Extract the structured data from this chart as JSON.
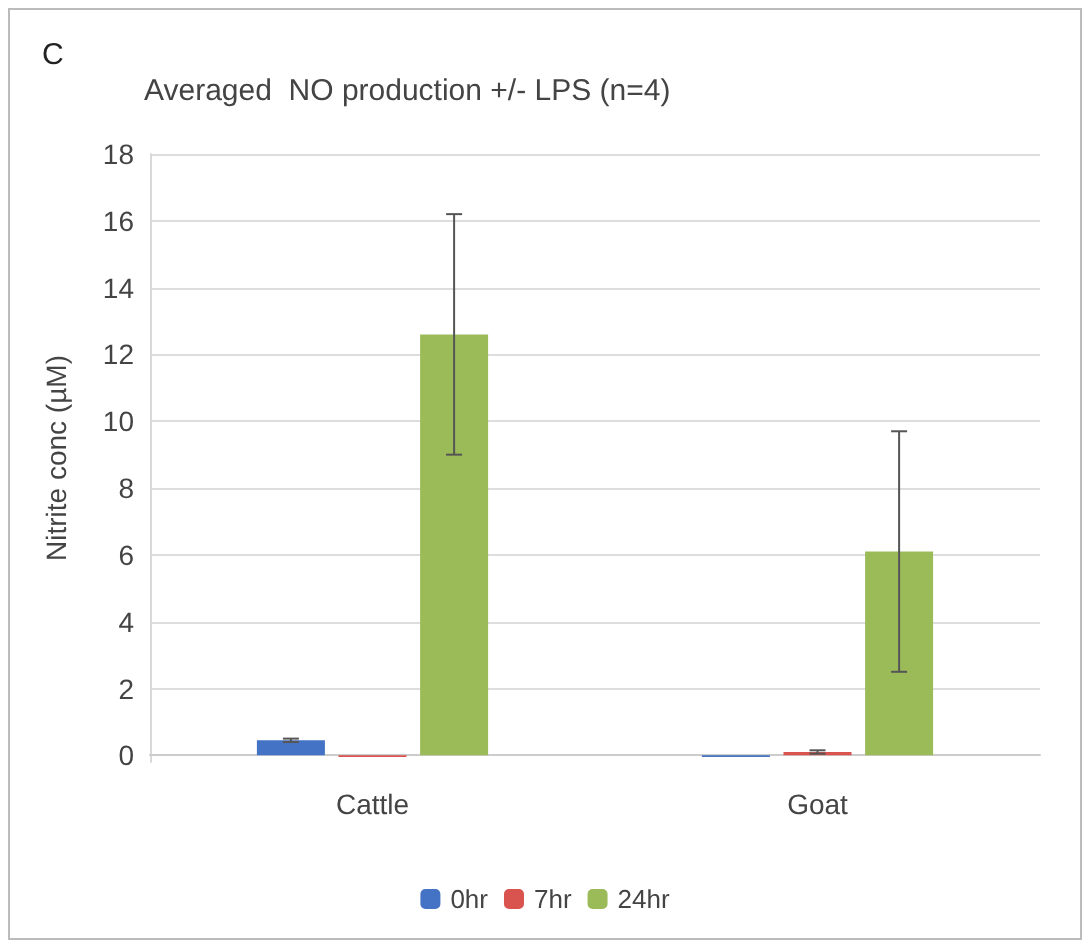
{
  "chart_data": {
    "type": "bar",
    "title": "Averaged  NO production +/- LPS (n=4)",
    "ylabel": "Nitrite conc (µM)",
    "annotations": [
      "C"
    ],
    "categories": [
      "Cattle",
      "Goat"
    ],
    "series": [
      {
        "name": "0hr",
        "color": "#4472c4",
        "values": [
          0.45,
          -0.05
        ],
        "errors": [
          0.05,
          null
        ]
      },
      {
        "name": "7hr",
        "color": "#d9534f",
        "values": [
          -0.05,
          0.1
        ],
        "errors": [
          null,
          0.05
        ]
      },
      {
        "name": "24hr",
        "color": "#9bbb59",
        "values": [
          12.6,
          6.1
        ],
        "errors": [
          3.6,
          3.6
        ]
      }
    ],
    "ylim": [
      -0.2,
      18
    ],
    "yticks": [
      0,
      2,
      4,
      6,
      8,
      10,
      12,
      14,
      16,
      18
    ],
    "grid": "y",
    "legend": "bottom"
  }
}
